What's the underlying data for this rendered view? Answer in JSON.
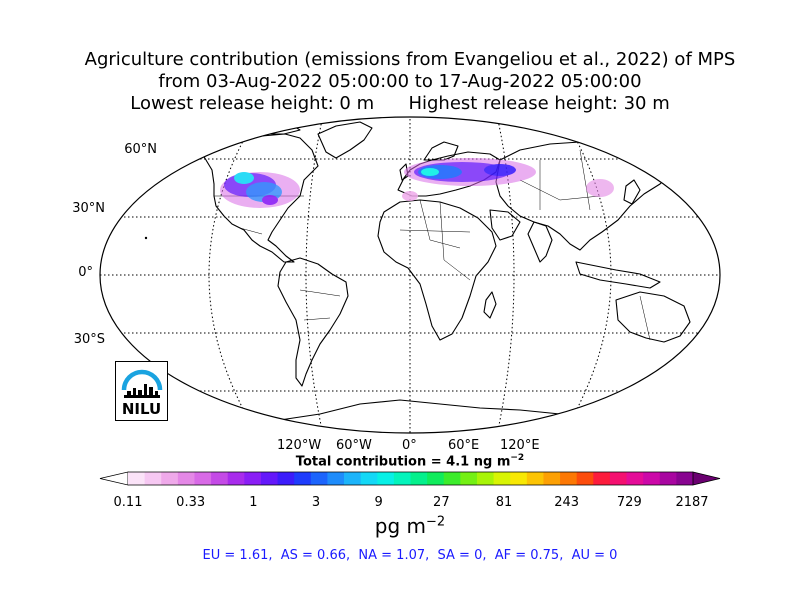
{
  "title": {
    "line1": "Agriculture contribution (emissions from Evangeliou et al., 2022) of MPS",
    "line2": "from 03-Aug-2022 05:00:00 to 17-Aug-2022 05:00:00",
    "line3": "Lowest release height: 0 m      Highest release height: 30 m"
  },
  "map": {
    "projection": "robinson",
    "lat_labels": [
      "60°N",
      "30°N",
      "0°",
      "30°S"
    ],
    "lon_labels": [
      "120°W",
      "60°W",
      "0°",
      "60°E",
      "120°E"
    ],
    "gridlines": true,
    "plume_regions": [
      "North America",
      "Europe",
      "Western Asia",
      "East Asia"
    ]
  },
  "total": {
    "prefix": "Total contribution = 4.1 ng m",
    "exponent": "−2"
  },
  "colorbar": {
    "tick_labels": [
      "0.11",
      "0.33",
      "1",
      "3",
      "9",
      "27",
      "81",
      "243",
      "729",
      "2187"
    ],
    "units_base": "pg m",
    "units_exp": "−2",
    "colors": [
      "#fbe3f8",
      "#f6c8f2",
      "#efa9ea",
      "#e488e6",
      "#d86ae6",
      "#c44ae6",
      "#a82cec",
      "#8a1ef5",
      "#6418fa",
      "#3c1cfb",
      "#1e3cfc",
      "#1c64fc",
      "#1e8cfb",
      "#1cb4fa",
      "#14d8f6",
      "#08f0e6",
      "#04f4bc",
      "#04f08c",
      "#10ec5c",
      "#3cec2c",
      "#74f014",
      "#a8f408",
      "#d8f404",
      "#f8e804",
      "#fcc404",
      "#fca004",
      "#fc7804",
      "#fc4c0c",
      "#fc1c3c",
      "#f41070",
      "#e40c98",
      "#cc08a8",
      "#a806a0",
      "#880490"
    ]
  },
  "regions": "EU = 1.61,  AS = 0.66,  NA = 1.07,  SA = 0,  AF = 0.75,  AU = 0",
  "logo": {
    "text": "NILU",
    "arc_color": "#1aa3e0"
  }
}
